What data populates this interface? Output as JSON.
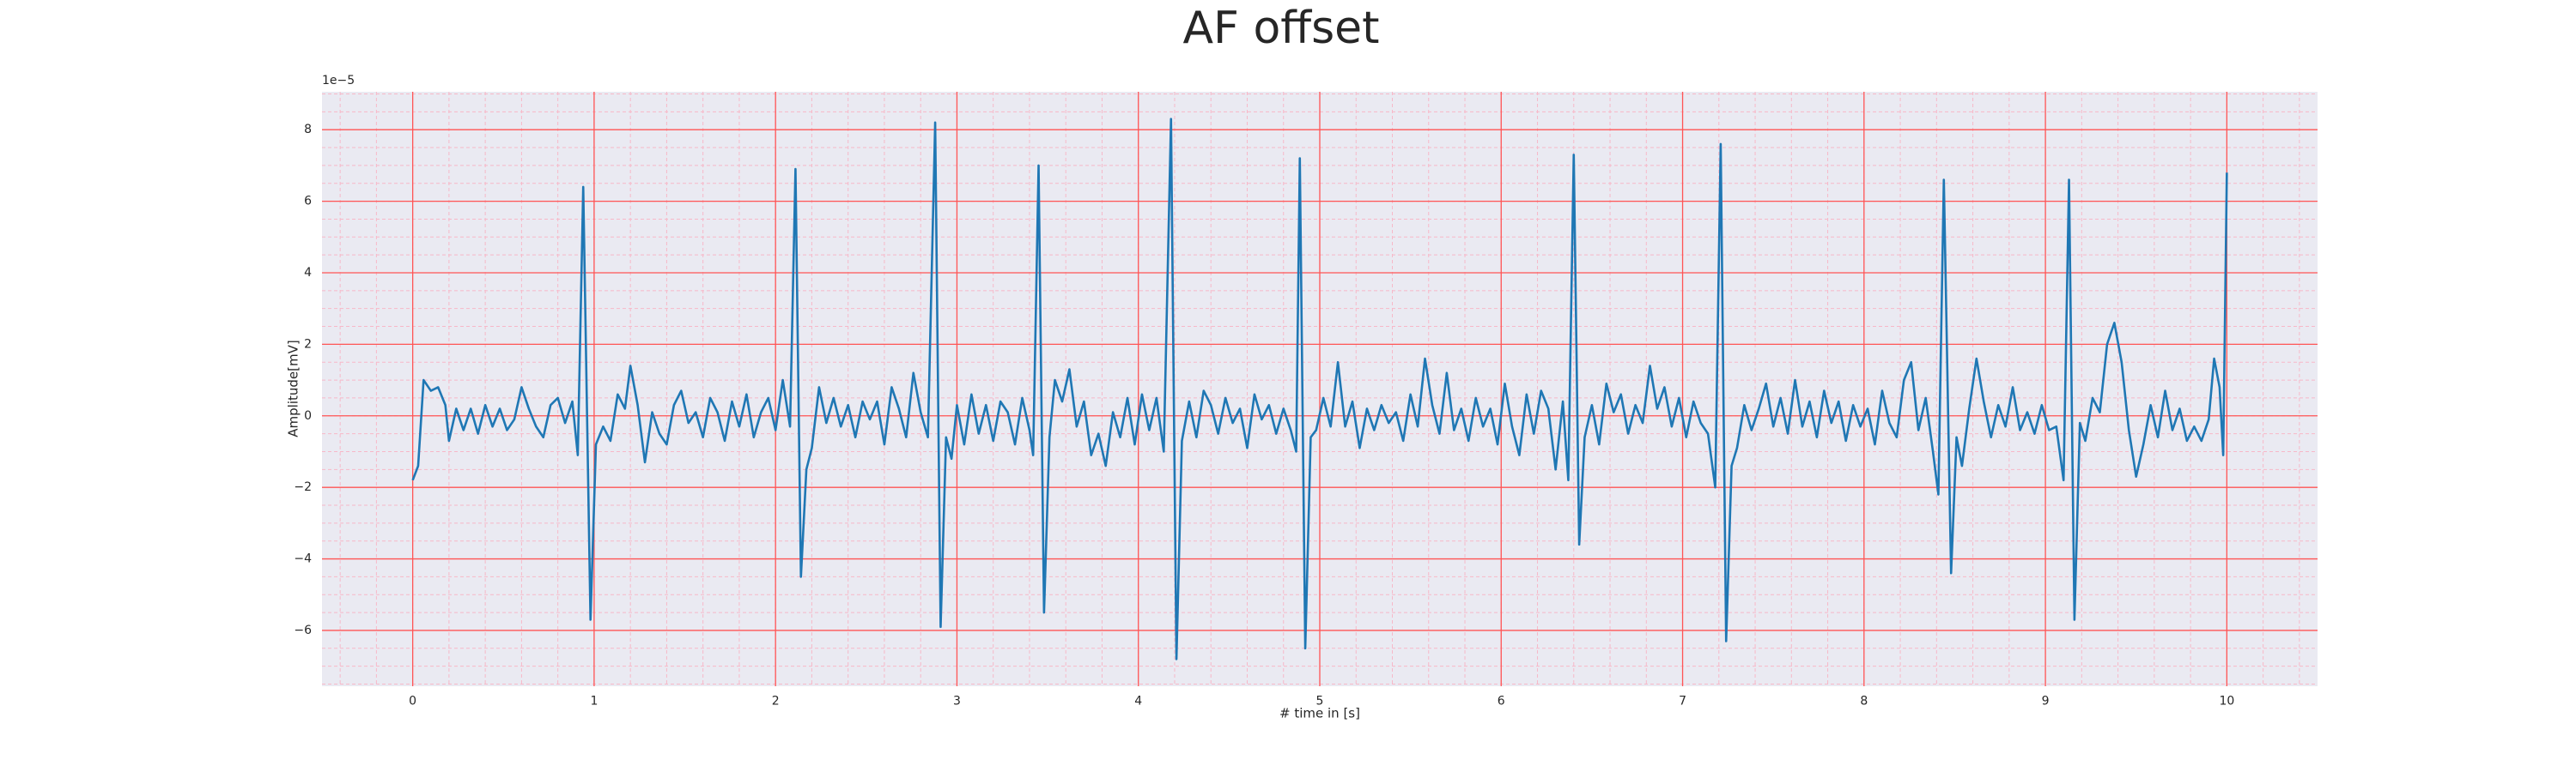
{
  "chart_data": {
    "type": "line",
    "title": "AF offset",
    "xlabel": "# time in [s]",
    "ylabel": "Amplitude[mV]",
    "y_offset_label": "1e−5",
    "color": "#1f77b4",
    "background": "#eaeaf2",
    "grid": true,
    "grid_color": "#ff5555",
    "minor_grid": {
      "x": 0.2,
      "y": 0.5,
      "color": "#f7b8c8"
    },
    "xlim": [
      -0.5,
      10.5
    ],
    "ylim": [
      -7.56,
      9.06
    ],
    "xticks": [
      0,
      1,
      2,
      3,
      4,
      5,
      6,
      7,
      8,
      9,
      10
    ],
    "yticks": [
      {
        "value": -6,
        "label": "−6"
      },
      {
        "value": -4,
        "label": "−4"
      },
      {
        "value": -2,
        "label": "−2"
      },
      0,
      2,
      4,
      6,
      8
    ],
    "x": [
      0,
      0.03,
      0.06,
      0.1,
      0.14,
      0.18,
      0.2,
      0.24,
      0.28,
      0.32,
      0.36,
      0.4,
      0.44,
      0.48,
      0.52,
      0.56,
      0.6,
      0.64,
      0.68,
      0.72,
      0.76,
      0.8,
      0.84,
      0.88,
      0.91,
      0.94,
      0.98,
      1.01,
      1.05,
      1.09,
      1.13,
      1.17,
      1.2,
      1.24,
      1.28,
      1.32,
      1.36,
      1.4,
      1.44,
      1.48,
      1.52,
      1.56,
      1.6,
      1.64,
      1.68,
      1.72,
      1.76,
      1.8,
      1.84,
      1.88,
      1.92,
      1.96,
      2.0,
      2.04,
      2.08,
      2.11,
      2.14,
      2.17,
      2.2,
      2.24,
      2.28,
      2.32,
      2.36,
      2.4,
      2.44,
      2.48,
      2.52,
      2.56,
      2.6,
      2.64,
      2.68,
      2.72,
      2.76,
      2.8,
      2.84,
      2.88,
      2.91,
      2.94,
      2.97,
      3.0,
      3.04,
      3.08,
      3.12,
      3.16,
      3.2,
      3.24,
      3.28,
      3.32,
      3.36,
      3.4,
      3.42,
      3.45,
      3.48,
      3.51,
      3.54,
      3.58,
      3.62,
      3.66,
      3.7,
      3.74,
      3.78,
      3.82,
      3.86,
      3.9,
      3.94,
      3.98,
      4.02,
      4.06,
      4.1,
      4.14,
      4.18,
      4.21,
      4.24,
      4.28,
      4.32,
      4.36,
      4.4,
      4.44,
      4.48,
      4.52,
      4.56,
      4.6,
      4.64,
      4.68,
      4.72,
      4.76,
      4.8,
      4.84,
      4.87,
      4.89,
      4.92,
      4.95,
      4.98,
      5.02,
      5.06,
      5.1,
      5.14,
      5.18,
      5.22,
      5.26,
      5.3,
      5.34,
      5.38,
      5.42,
      5.46,
      5.5,
      5.54,
      5.58,
      5.62,
      5.66,
      5.7,
      5.74,
      5.78,
      5.82,
      5.86,
      5.9,
      5.94,
      5.98,
      6.02,
      6.06,
      6.1,
      6.14,
      6.18,
      6.22,
      6.26,
      6.3,
      6.34,
      6.37,
      6.4,
      6.43,
      6.46,
      6.5,
      6.54,
      6.58,
      6.62,
      6.66,
      6.7,
      6.74,
      6.78,
      6.82,
      6.86,
      6.9,
      6.94,
      6.98,
      7.02,
      7.06,
      7.1,
      7.14,
      7.18,
      7.21,
      7.24,
      7.27,
      7.3,
      7.34,
      7.38,
      7.42,
      7.46,
      7.5,
      7.54,
      7.58,
      7.62,
      7.66,
      7.7,
      7.74,
      7.78,
      7.82,
      7.86,
      7.9,
      7.94,
      7.98,
      8.02,
      8.06,
      8.1,
      8.14,
      8.18,
      8.22,
      8.26,
      8.3,
      8.34,
      8.38,
      8.41,
      8.44,
      8.48,
      8.51,
      8.54,
      8.58,
      8.62,
      8.66,
      8.7,
      8.74,
      8.78,
      8.82,
      8.86,
      8.9,
      8.94,
      8.98,
      9.02,
      9.06,
      9.1,
      9.13,
      9.16,
      9.19,
      9.22,
      9.26,
      9.3,
      9.34,
      9.38,
      9.42,
      9.46,
      9.5,
      9.54,
      9.58,
      9.62,
      9.66,
      9.7,
      9.74,
      9.78,
      9.82,
      9.86,
      9.9,
      9.93,
      9.96,
      9.98,
      10.0
    ],
    "values": [
      -1.8,
      -1.4,
      1.0,
      0.7,
      0.8,
      0.3,
      -0.7,
      0.2,
      -0.4,
      0.2,
      -0.5,
      0.3,
      -0.3,
      0.2,
      -0.4,
      -0.1,
      0.8,
      0.2,
      -0.3,
      -0.6,
      0.3,
      0.5,
      -0.2,
      0.4,
      -1.1,
      6.4,
      -5.7,
      -0.8,
      -0.3,
      -0.7,
      0.6,
      0.2,
      1.4,
      0.3,
      -1.3,
      0.1,
      -0.5,
      -0.8,
      0.3,
      0.7,
      -0.2,
      0.1,
      -0.6,
      0.5,
      0.1,
      -0.7,
      0.4,
      -0.3,
      0.6,
      -0.6,
      0.1,
      0.5,
      -0.4,
      1.0,
      -0.3,
      6.9,
      -4.5,
      -1.5,
      -0.9,
      0.8,
      -0.2,
      0.5,
      -0.3,
      0.3,
      -0.6,
      0.4,
      -0.1,
      0.4,
      -0.8,
      0.8,
      0.2,
      -0.6,
      1.2,
      0.1,
      -0.6,
      8.2,
      -5.9,
      -0.6,
      -1.2,
      0.3,
      -0.8,
      0.6,
      -0.5,
      0.3,
      -0.7,
      0.4,
      0.1,
      -0.8,
      0.5,
      -0.4,
      -1.1,
      7.0,
      -5.5,
      -0.6,
      1.0,
      0.4,
      1.3,
      -0.3,
      0.4,
      -1.1,
      -0.5,
      -1.4,
      0.1,
      -0.6,
      0.5,
      -0.8,
      0.6,
      -0.4,
      0.5,
      -1.0,
      8.3,
      -6.8,
      -0.7,
      0.4,
      -0.6,
      0.7,
      0.3,
      -0.5,
      0.5,
      -0.2,
      0.2,
      -0.9,
      0.6,
      -0.1,
      0.3,
      -0.5,
      0.2,
      -0.4,
      -1.0,
      7.2,
      -6.5,
      -0.6,
      -0.4,
      0.5,
      -0.3,
      1.5,
      -0.3,
      0.4,
      -0.9,
      0.2,
      -0.4,
      0.3,
      -0.2,
      0.1,
      -0.7,
      0.6,
      -0.3,
      1.6,
      0.3,
      -0.5,
      1.2,
      -0.4,
      0.2,
      -0.7,
      0.5,
      -0.3,
      0.2,
      -0.8,
      0.9,
      -0.3,
      -1.1,
      0.6,
      -0.5,
      0.7,
      0.2,
      -1.5,
      0.4,
      -1.8,
      7.3,
      -3.6,
      -0.6,
      0.3,
      -0.8,
      0.9,
      0.1,
      0.6,
      -0.5,
      0.3,
      -0.2,
      1.4,
      0.2,
      0.8,
      -0.3,
      0.5,
      -0.6,
      0.4,
      -0.2,
      -0.5,
      -2.0,
      7.6,
      -6.3,
      -1.4,
      -0.9,
      0.3,
      -0.4,
      0.2,
      0.9,
      -0.3,
      0.5,
      -0.5,
      1.0,
      -0.3,
      0.4,
      -0.6,
      0.7,
      -0.2,
      0.4,
      -0.7,
      0.3,
      -0.3,
      0.2,
      -0.8,
      0.7,
      -0.2,
      -0.6,
      1.0,
      1.5,
      -0.4,
      0.5,
      -1.0,
      -2.2,
      6.6,
      -4.4,
      -0.6,
      -1.4,
      0.2,
      1.6,
      0.4,
      -0.6,
      0.3,
      -0.3,
      0.8,
      -0.4,
      0.1,
      -0.5,
      0.3,
      -0.4,
      -0.3,
      -1.8,
      6.6,
      -5.7,
      -0.2,
      -0.7,
      0.5,
      0.1,
      2.0,
      2.6,
      1.5,
      -0.4,
      -1.7,
      -0.8,
      0.3,
      -0.6,
      0.7,
      -0.4,
      0.2,
      -0.7,
      -0.3,
      -0.7,
      -0.1,
      1.6,
      0.8,
      -1.1,
      6.8
    ]
  }
}
